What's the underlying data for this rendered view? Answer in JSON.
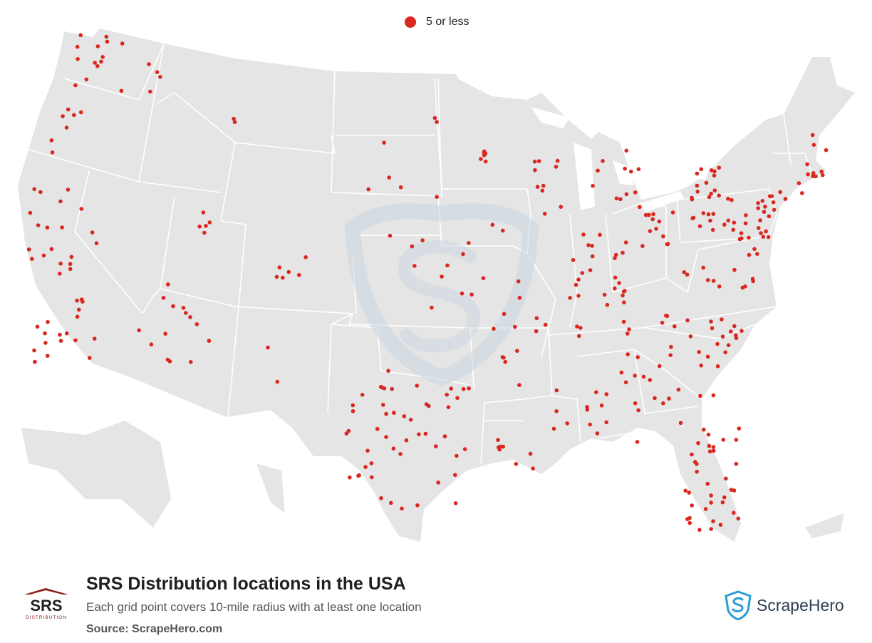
{
  "legend": {
    "label": "5 or less",
    "color": "#d9281f"
  },
  "footer": {
    "title": "SRS Distribution locations in the USA",
    "subtitle": "Each grid point covers 10-mile radius with at least one location",
    "source": "Source: ScrapeHero.com"
  },
  "brand": {
    "company_logo_text": "SRS",
    "company_logo_subtext": "DISTRIBUTION",
    "provider_name": "ScrapeHero"
  },
  "colors": {
    "land": "#e5e5e5",
    "border": "#ffffff",
    "marker": "#d9281f",
    "watermark": "#c9d6e0"
  },
  "map_data": {
    "marker_category": "5 or less",
    "locations": [
      {
        "state": "WA",
        "count": 14
      },
      {
        "state": "OR",
        "count": 7
      },
      {
        "state": "CA",
        "count": 38
      },
      {
        "state": "NV",
        "count": 4
      },
      {
        "state": "ID",
        "count": 4
      },
      {
        "state": "MT",
        "count": 2
      },
      {
        "state": "UT",
        "count": 5
      },
      {
        "state": "AZ",
        "count": 10
      },
      {
        "state": "CO",
        "count": 6
      },
      {
        "state": "NM",
        "count": 2
      },
      {
        "state": "TX",
        "count": 42
      },
      {
        "state": "OK",
        "count": 7
      },
      {
        "state": "KS",
        "count": 6
      },
      {
        "state": "NE",
        "count": 5
      },
      {
        "state": "SD",
        "count": 2
      },
      {
        "state": "ND",
        "count": 2
      },
      {
        "state": "MN",
        "count": 6
      },
      {
        "state": "IA",
        "count": 4
      },
      {
        "state": "MO",
        "count": 10
      },
      {
        "state": "AR",
        "count": 5
      },
      {
        "state": "LA",
        "count": 8
      },
      {
        "state": "MS",
        "count": 4
      },
      {
        "state": "AL",
        "count": 8
      },
      {
        "state": "TN",
        "count": 10
      },
      {
        "state": "KY",
        "count": 5
      },
      {
        "state": "IL",
        "count": 12
      },
      {
        "state": "WI",
        "count": 10
      },
      {
        "state": "MI",
        "count": 12
      },
      {
        "state": "IN",
        "count": 8
      },
      {
        "state": "OH",
        "count": 12
      },
      {
        "state": "PA",
        "count": 20
      },
      {
        "state": "NY",
        "count": 12
      },
      {
        "state": "NJ",
        "count": 14
      },
      {
        "state": "MD",
        "count": 8
      },
      {
        "state": "VA",
        "count": 9
      },
      {
        "state": "NC",
        "count": 14
      },
      {
        "state": "SC",
        "count": 8
      },
      {
        "state": "GA",
        "count": 16
      },
      {
        "state": "FL",
        "count": 36
      },
      {
        "state": "MA",
        "count": 8
      },
      {
        "state": "CT",
        "count": 4
      },
      {
        "state": "NH",
        "count": 2
      },
      {
        "state": "WV",
        "count": 2
      }
    ]
  }
}
